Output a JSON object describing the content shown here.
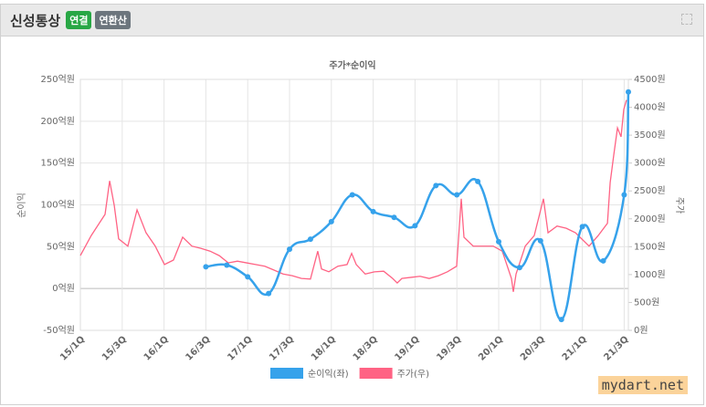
{
  "header": {
    "title": "신성통상",
    "badges": [
      "연결",
      "연환산"
    ]
  },
  "watermark": "mydart.net",
  "chart_data": {
    "type": "line",
    "title": "주가*순이익",
    "ylabel": "순이익",
    "y2label": "주가",
    "grid": true,
    "legend": "bottom",
    "xlim": [
      0,
      26.2
    ],
    "xticks": [
      {
        "value": 0,
        "label": "15/1Q"
      },
      {
        "value": 2,
        "label": "15/3Q"
      },
      {
        "value": 4,
        "label": "16/1Q"
      },
      {
        "value": 6,
        "label": "16/3Q"
      },
      {
        "value": 8,
        "label": "17/1Q"
      },
      {
        "value": 10,
        "label": "17/3Q"
      },
      {
        "value": 12,
        "label": "18/1Q"
      },
      {
        "value": 14,
        "label": "18/3Q"
      },
      {
        "value": 16,
        "label": "19/1Q"
      },
      {
        "value": 18,
        "label": "19/3Q"
      },
      {
        "value": 20,
        "label": "20/1Q"
      },
      {
        "value": 22,
        "label": "20/3Q"
      },
      {
        "value": 24,
        "label": "21/1Q"
      },
      {
        "value": 26,
        "label": "21/3Q"
      }
    ],
    "ylim": [
      -50,
      250
    ],
    "yticks": [
      {
        "value": -50,
        "label": "-50억원"
      },
      {
        "value": 0,
        "label": "0억원"
      },
      {
        "value": 50,
        "label": "50억원"
      },
      {
        "value": 100,
        "label": "100억원"
      },
      {
        "value": 150,
        "label": "150억원"
      },
      {
        "value": 200,
        "label": "200억원"
      },
      {
        "value": 250,
        "label": "250억원"
      }
    ],
    "y2lim": [
      0,
      4500
    ],
    "y2ticks": [
      {
        "value": 0,
        "label": "0원"
      },
      {
        "value": 500,
        "label": "500원"
      },
      {
        "value": 1000,
        "label": "1000원"
      },
      {
        "value": 1500,
        "label": "1500원"
      },
      {
        "value": 2000,
        "label": "2000원"
      },
      {
        "value": 2500,
        "label": "2500원"
      },
      {
        "value": 3000,
        "label": "3000원"
      },
      {
        "value": 3500,
        "label": "3500원"
      },
      {
        "value": 4000,
        "label": "4000원"
      },
      {
        "value": 4500,
        "label": "4500원"
      }
    ],
    "series": [
      {
        "name": "순이익(좌)",
        "color": "#36a2eb",
        "smooth": true,
        "x": [
          6,
          7,
          8,
          9,
          10,
          11,
          12,
          13,
          14,
          15,
          16,
          17,
          18,
          19,
          20,
          21,
          22,
          23,
          24,
          25,
          26,
          26.2
        ],
        "values": [
          26,
          28,
          14,
          -6,
          47,
          59,
          80,
          112,
          92,
          85,
          75,
          123,
          112,
          128,
          56,
          25,
          57,
          -37,
          74,
          33,
          112,
          235
        ]
      },
      {
        "name": "주가(우)",
        "color": "#ff6384",
        "axis": "y2",
        "smooth": false,
        "x": [
          0,
          0.52,
          1.18,
          1.4,
          1.62,
          1.83,
          2.27,
          2.71,
          3.14,
          3.58,
          4.02,
          4.45,
          4.89,
          5.33,
          5.76,
          6.2,
          6.64,
          7.07,
          7.51,
          7.95,
          8.38,
          8.82,
          9.26,
          9.69,
          10.13,
          10.57,
          11.0,
          11.35,
          11.53,
          11.88,
          12.31,
          12.75,
          12.97,
          13.19,
          13.62,
          14.06,
          14.5,
          14.93,
          15.15,
          15.37,
          15.81,
          16.24,
          16.68,
          17.12,
          17.55,
          17.99,
          18.21,
          18.34,
          18.78,
          19.3,
          19.74,
          20.17,
          20.61,
          20.7,
          20.83,
          21.27,
          21.7,
          22.14,
          22.36,
          22.79,
          23.23,
          23.67,
          24.32,
          24.76,
          25.2,
          25.33,
          25.5,
          25.68,
          25.85,
          25.98,
          26.11
        ],
        "values": [
          1340,
          1700,
          2080,
          2680,
          2240,
          1640,
          1510,
          2160,
          1750,
          1510,
          1180,
          1260,
          1670,
          1510,
          1470,
          1420,
          1340,
          1210,
          1240,
          1210,
          1180,
          1150,
          1080,
          1010,
          980,
          930,
          920,
          1420,
          1100,
          1050,
          1150,
          1180,
          1380,
          1180,
          1010,
          1050,
          1060,
          930,
          850,
          930,
          950,
          970,
          930,
          980,
          1050,
          1150,
          2360,
          1670,
          1510,
          1510,
          1510,
          1420,
          930,
          690,
          1010,
          1510,
          1700,
          2360,
          1750,
          1870,
          1830,
          1750,
          1510,
          1700,
          1920,
          2650,
          3140,
          3630,
          3470,
          3960,
          4130
        ]
      }
    ]
  }
}
